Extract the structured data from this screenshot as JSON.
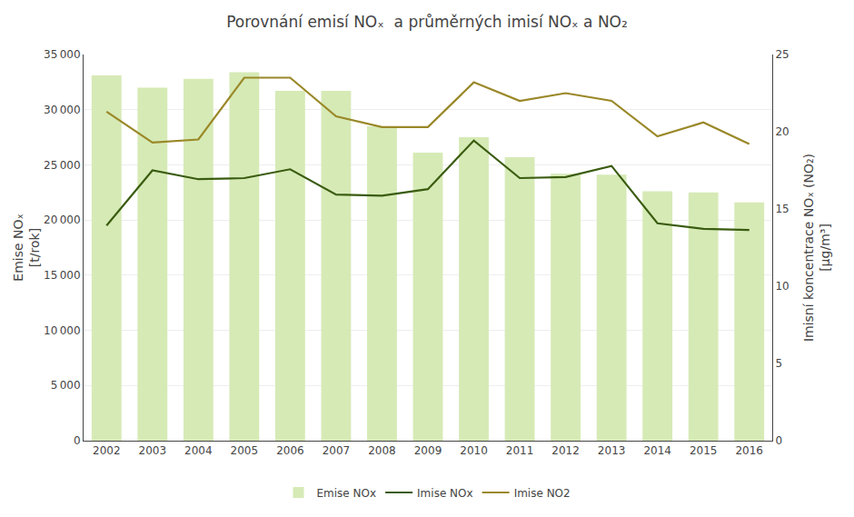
{
  "chart_data": {
    "type": "bar",
    "title": "Porovnání emisí NOₓ  a průměrných imisí NOₓ a NO₂",
    "ylabel": "Emise NOₓ\n[t/rok]",
    "y2label": "Imisní koncentrace NOₓ (NO₂)\n[μg/m³]",
    "categories": [
      "2002",
      "2003",
      "2004",
      "2005",
      "2006",
      "2007",
      "2008",
      "2009",
      "2010",
      "2011",
      "2012",
      "2013",
      "2014",
      "2015",
      "2016"
    ],
    "series": [
      {
        "name": "Emise NOx",
        "type": "bar",
        "axis": "y",
        "color": "#d6eab6",
        "values": [
          33100,
          32000,
          32800,
          33400,
          31700,
          31700,
          28500,
          26100,
          27500,
          25700,
          24200,
          24100,
          22600,
          22500,
          21600
        ]
      },
      {
        "name": "Imise NOx",
        "type": "line",
        "axis": "y",
        "color": "#3a5c10",
        "values": [
          19500,
          24500,
          23700,
          23800,
          24600,
          22300,
          22200,
          22800,
          27200,
          23800,
          23900,
          24900,
          19700,
          19200,
          19100
        ]
      },
      {
        "name": "Imise NO2",
        "type": "line",
        "axis": "y2",
        "color": "#9a8828",
        "values": [
          21.3,
          19.3,
          19.5,
          23.5,
          23.5,
          21.0,
          20.3,
          20.3,
          23.2,
          22.0,
          22.5,
          22.0,
          19.7,
          20.6,
          19.2
        ]
      }
    ],
    "ylim": [
      0,
      35000
    ],
    "yticks": [
      0,
      {
        "value": 5000,
        "label": "5 000"
      },
      {
        "value": 10000,
        "label": "10 000"
      },
      {
        "value": 15000,
        "label": "15 000"
      },
      {
        "value": 20000,
        "label": "20 000"
      },
      {
        "value": 25000,
        "label": "25 000"
      },
      {
        "value": 30000,
        "label": "30 000"
      },
      {
        "value": 35000,
        "label": "35 000"
      }
    ],
    "y2lim": [
      0,
      25
    ],
    "y2ticks": [
      0,
      5,
      10,
      15,
      20,
      25
    ],
    "grid": true,
    "legend": "bottom"
  }
}
